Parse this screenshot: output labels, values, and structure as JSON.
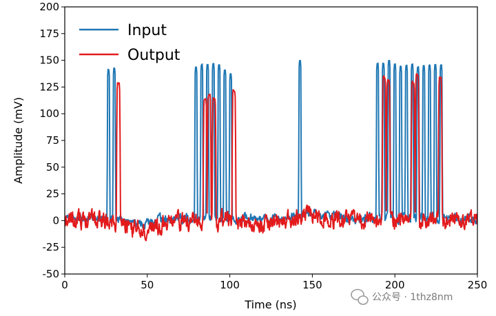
{
  "chart_data": {
    "type": "line",
    "xlabel": "Time (ns)",
    "ylabel": "Amplitude (mV)",
    "xlim": [
      0,
      250
    ],
    "ylim": [
      -50,
      200
    ],
    "xticks": [
      0,
      50,
      100,
      150,
      200,
      250
    ],
    "yticks": [
      -50,
      -25,
      0,
      25,
      50,
      75,
      100,
      125,
      150,
      175,
      200
    ],
    "grid": false,
    "legend_position": "top-left",
    "series": [
      {
        "name": "Input",
        "color": "#1f77b4",
        "baseline": 2,
        "pulses": [
          {
            "t": 26.5,
            "amp": 141
          },
          {
            "t": 30.0,
            "amp": 142
          },
          {
            "t": 79.5,
            "amp": 143
          },
          {
            "t": 83.0,
            "amp": 146
          },
          {
            "t": 86.5,
            "amp": 146
          },
          {
            "t": 90.0,
            "amp": 147
          },
          {
            "t": 93.5,
            "amp": 145
          },
          {
            "t": 97.0,
            "amp": 141
          },
          {
            "t": 100.5,
            "amp": 137
          },
          {
            "t": 142.5,
            "amp": 150
          },
          {
            "t": 189.5,
            "amp": 147
          },
          {
            "t": 193.0,
            "amp": 147
          },
          {
            "t": 196.5,
            "amp": 150
          },
          {
            "t": 200.0,
            "amp": 146
          },
          {
            "t": 203.5,
            "amp": 144
          },
          {
            "t": 207.0,
            "amp": 145
          },
          {
            "t": 210.5,
            "amp": 146
          },
          {
            "t": 214.0,
            "amp": 144
          },
          {
            "t": 217.5,
            "amp": 145
          },
          {
            "t": 221.0,
            "amp": 146
          },
          {
            "t": 224.5,
            "amp": 146
          },
          {
            "t": 228.0,
            "amp": 146
          }
        ]
      },
      {
        "name": "Output",
        "color": "#e31a1c",
        "baseline": 0,
        "pulses": [
          {
            "t": 32.5,
            "amp": 128
          },
          {
            "t": 85.0,
            "amp": 113
          },
          {
            "t": 87.5,
            "amp": 117
          },
          {
            "t": 90.5,
            "amp": 114
          },
          {
            "t": 102.5,
            "amp": 122
          },
          {
            "t": 193.5,
            "amp": 134
          },
          {
            "t": 196.0,
            "amp": 132
          },
          {
            "t": 211.0,
            "amp": 130
          },
          {
            "t": 213.5,
            "amp": 136
          },
          {
            "t": 227.5,
            "amp": 134
          }
        ]
      }
    ]
  },
  "watermark": {
    "text": "公众号 · 1thz8nm"
  }
}
